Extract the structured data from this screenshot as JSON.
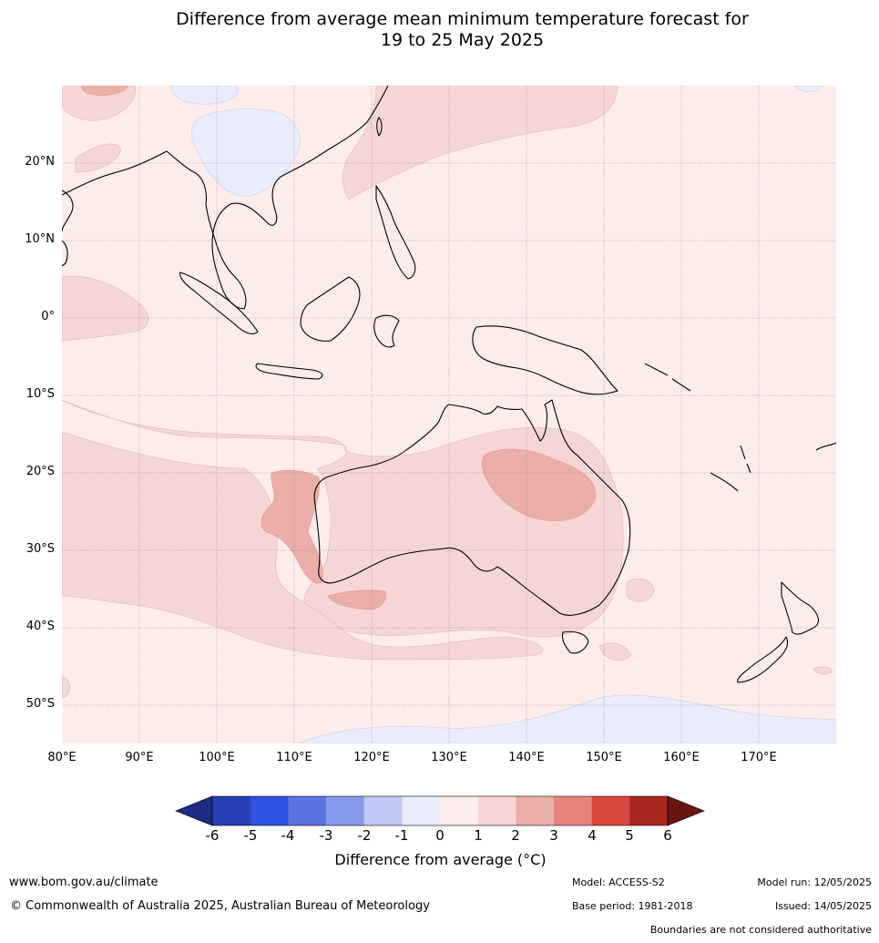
{
  "title": {
    "line1": "Difference from average mean minimum temperature forecast for",
    "line2": "19 to 25 May 2025"
  },
  "map": {
    "lat_labels": [
      "20°N",
      "10°N",
      "0°",
      "10°S",
      "20°S",
      "30°S",
      "40°S",
      "50°S"
    ],
    "lon_labels": [
      "80°E",
      "90°E",
      "100°E",
      "110°E",
      "120°E",
      "130°E",
      "140°E",
      "150°E",
      "160°E",
      "170°E"
    ],
    "lat_range": [
      -55,
      30
    ],
    "lon_range": [
      80,
      180
    ]
  },
  "colorbar": {
    "ticks": [
      "-6",
      "-5",
      "-4",
      "-3",
      "-2",
      "-1",
      "0",
      "1",
      "2",
      "3",
      "4",
      "5",
      "6"
    ],
    "colors": [
      "#1d2b82",
      "#263fb3",
      "#2f50e0",
      "#5b73e3",
      "#8899ec",
      "#c0c8f4",
      "#e8ecfb",
      "#fceceb",
      "#f6d5d5",
      "#ecaea9",
      "#e6857d",
      "#d9473f",
      "#a8271f",
      "#6b1513"
    ],
    "label": "Difference from average (°C)"
  },
  "footer": {
    "website": "www.bom.gov.au/climate",
    "copyright": "© Commonwealth of Australia 2025, Australian Bureau of Meteorology",
    "model": "Model: ACCESS-S2",
    "base_period": "Base period: 1981-2018",
    "model_run": "Model run: 12/05/2025",
    "issued": "Issued: 14/05/2025",
    "disclaimer": "Boundaries are not considered authoritative"
  }
}
